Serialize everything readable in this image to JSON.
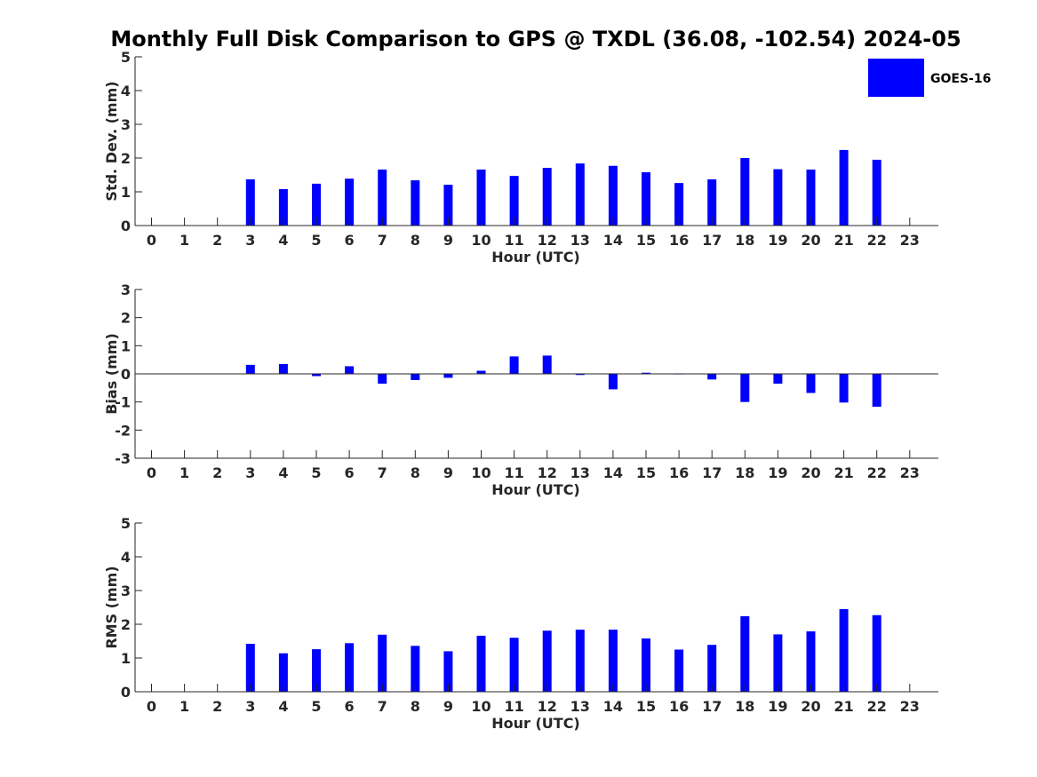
{
  "colors": {
    "bar": "#0000ff",
    "axis": "#262626",
    "background": "#ffffff"
  },
  "chart_data": {
    "title": "Monthly Full Disk Comparison to GPS @ TXDL (36.08, -102.54) 2024-05",
    "legend": {
      "label": "GOES-16",
      "placement": "top-right"
    },
    "panels": [
      {
        "type": "bar",
        "ylabel": "Std. Dev. (mm)",
        "xlabel": "Hour (UTC)",
        "ylim": [
          0,
          5
        ],
        "yticks": [
          "0",
          "1",
          "2",
          "3",
          "4",
          "5"
        ],
        "categories": [
          "0",
          "1",
          "2",
          "3",
          "4",
          "5",
          "6",
          "7",
          "8",
          "9",
          "10",
          "11",
          "12",
          "13",
          "14",
          "15",
          "16",
          "17",
          "18",
          "19",
          "20",
          "21",
          "22",
          "23"
        ],
        "values": [
          null,
          null,
          null,
          1.37,
          1.08,
          1.24,
          1.39,
          1.66,
          1.34,
          1.21,
          1.66,
          1.47,
          1.71,
          1.84,
          1.77,
          1.58,
          1.26,
          1.37,
          2.0,
          1.67,
          1.66,
          2.24,
          1.95,
          null
        ],
        "grid": false
      },
      {
        "type": "bar",
        "ylabel": "Bias (mm)",
        "xlabel": "Hour (UTC)",
        "ylim": [
          -3,
          3
        ],
        "yticks": [
          "-3",
          "-2",
          "-1",
          "0",
          "1",
          "2",
          "3"
        ],
        "categories": [
          "0",
          "1",
          "2",
          "3",
          "4",
          "5",
          "6",
          "7",
          "8",
          "9",
          "10",
          "11",
          "12",
          "13",
          "14",
          "15",
          "16",
          "17",
          "18",
          "19",
          "20",
          "21",
          "22",
          "23"
        ],
        "values": [
          null,
          null,
          null,
          0.32,
          0.35,
          -0.08,
          0.27,
          -0.35,
          -0.22,
          -0.14,
          0.11,
          0.62,
          0.65,
          -0.04,
          -0.55,
          0.04,
          0.0,
          -0.2,
          -1.0,
          -0.35,
          -0.68,
          -1.02,
          -1.17,
          null
        ],
        "grid": false
      },
      {
        "type": "bar",
        "ylabel": "RMS (mm)",
        "xlabel": "Hour (UTC)",
        "ylim": [
          0,
          5
        ],
        "yticks": [
          "0",
          "1",
          "2",
          "3",
          "4",
          "5"
        ],
        "categories": [
          "0",
          "1",
          "2",
          "3",
          "4",
          "5",
          "6",
          "7",
          "8",
          "9",
          "10",
          "11",
          "12",
          "13",
          "14",
          "15",
          "16",
          "17",
          "18",
          "19",
          "20",
          "21",
          "22",
          "23"
        ],
        "values": [
          null,
          null,
          null,
          1.42,
          1.14,
          1.26,
          1.44,
          1.69,
          1.36,
          1.2,
          1.66,
          1.6,
          1.81,
          1.84,
          1.84,
          1.58,
          1.25,
          1.39,
          2.24,
          1.7,
          1.79,
          2.45,
          2.27,
          null
        ],
        "grid": false
      }
    ]
  }
}
